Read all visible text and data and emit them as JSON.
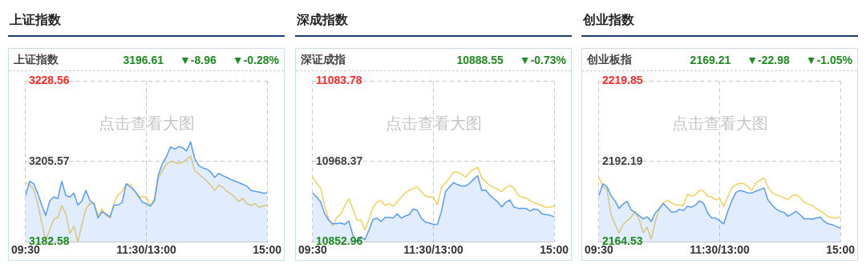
{
  "chart_data": [
    {
      "type": "line",
      "title": "上证指数",
      "subtitle": "上证指数",
      "annotations": [
        "点击查看大图",
        "3196.61",
        "▼-8.96",
        "▼-0.28%"
      ],
      "categories": [
        "09:30",
        null,
        null,
        null,
        null,
        null,
        null,
        null,
        null,
        null,
        null,
        null,
        null,
        null,
        null,
        null,
        null,
        null,
        null,
        null,
        null,
        null,
        null,
        null,
        null,
        null,
        null,
        null,
        null,
        null,
        "11:30/13:00",
        null,
        null,
        null,
        null,
        null,
        null,
        null,
        null,
        null,
        null,
        null,
        null,
        null,
        null,
        null,
        null,
        null,
        null,
        null,
        null,
        null,
        null,
        null,
        null,
        null,
        null,
        null,
        null,
        null,
        "15:00"
      ],
      "ylim": [
        3182.58,
        3228.56
      ],
      "yticks": [
        3182.58,
        3205.57,
        3228.56
      ],
      "grid": true,
      "legend": false,
      "series": [
        {
          "type": "area",
          "color": "#5a9cf8",
          "values": [
            3195.8,
            3199.9,
            3199.2,
            3196.5,
            3193.1,
            3190.1,
            3194.3,
            3195.4,
            3195.0,
            3199.9,
            3195.8,
            3195.4,
            3196.5,
            3193.1,
            3194.3,
            3197.3,
            3194.3,
            3193.5,
            3189.4,
            3191.2,
            3190.5,
            3189.7,
            3193.1,
            3193.1,
            3193.9,
            3199.2,
            3198.3,
            3197.3,
            3195.8,
            3193.9,
            3193.5,
            3192.8,
            3194.3,
            3201.8,
            3205.0,
            3207.0,
            3209.7,
            3209.1,
            3209.8,
            3209.5,
            3208.6,
            3211.2,
            3206.5,
            3204.4,
            3203.7,
            3203.4,
            3202.5,
            3201.0,
            3202.2,
            3201.5,
            3201.0,
            3200.4,
            3199.9,
            3199.5,
            3199.0,
            3198.5,
            3197.3,
            3197.0,
            3196.8,
            3196.5,
            3196.6
          ]
        },
        {
          "type": "line",
          "color": "#f2d15e",
          "values": [
            3199.5,
            3198.8,
            3197.6,
            3193.5,
            3188.2,
            3182.9,
            3186.0,
            3189.0,
            3189.5,
            3193.0,
            3190.5,
            3185.0,
            3187.0,
            3182.6,
            3187.5,
            3192.0,
            3193.5,
            3193.5,
            3190.1,
            3192.0,
            3190.1,
            3189.4,
            3193.9,
            3196.0,
            3197.0,
            3199.0,
            3199.0,
            3197.2,
            3195.4,
            3195.4,
            3195.4,
            3192.8,
            3195.0,
            3201.0,
            3203.0,
            3204.8,
            3205.6,
            3205.3,
            3205.0,
            3205.3,
            3206.2,
            3207.1,
            3203.0,
            3202.0,
            3201.0,
            3200.0,
            3198.7,
            3197.3,
            3198.8,
            3198.2,
            3197.0,
            3196.3,
            3195.3,
            3194.1,
            3195.0,
            3193.5,
            3193.0,
            3193.5,
            3192.4,
            3192.8,
            3193.1
          ]
        }
      ]
    },
    {
      "type": "line",
      "title": "深成指数",
      "subtitle": "深证成指",
      "annotations": [
        "点击查看大图",
        "10888.55",
        "▼-0.73%"
      ],
      "categories": [
        "09:30",
        null,
        null,
        null,
        null,
        null,
        null,
        null,
        null,
        null,
        null,
        null,
        null,
        null,
        null,
        null,
        null,
        null,
        null,
        null,
        null,
        null,
        null,
        null,
        null,
        null,
        null,
        null,
        null,
        null,
        "11:30/13:00",
        null,
        null,
        null,
        null,
        null,
        null,
        null,
        null,
        null,
        null,
        null,
        null,
        null,
        null,
        null,
        null,
        null,
        null,
        null,
        null,
        null,
        null,
        null,
        null,
        null,
        null,
        null,
        null,
        null,
        "15:00"
      ],
      "ylim": [
        10852.96,
        11083.78
      ],
      "yticks": [
        10852.96,
        10968.37,
        11083.78
      ],
      "grid": true,
      "legend": false,
      "series": [
        {
          "type": "area",
          "color": "#5a9cf8",
          "values": [
            10923,
            10917,
            10910,
            10893,
            10884,
            10879,
            10879,
            10880,
            10878,
            10883,
            10862,
            10853,
            10860,
            10856,
            10870,
            10885,
            10887,
            10882,
            10888,
            10888,
            10887,
            10893,
            10887,
            10890,
            10892,
            10900,
            10898,
            10887,
            10881,
            10880,
            10878,
            10878,
            10897,
            10925,
            10932,
            10938,
            10935,
            10933,
            10933,
            10937,
            10943,
            10948,
            10927,
            10927,
            10920,
            10915,
            10910,
            10903,
            10910,
            10913,
            10903,
            10901,
            10901,
            10901,
            10897,
            10900,
            10899,
            10893,
            10892,
            10891,
            10889
          ]
        },
        {
          "type": "line",
          "color": "#f2d15e",
          "values": [
            10946,
            10937,
            10930,
            10904,
            10885,
            10876,
            10888,
            10893,
            10905,
            10915,
            10900,
            10884,
            10884,
            10870,
            10885,
            10902,
            10910,
            10912,
            10905,
            10908,
            10904,
            10910,
            10917,
            10923,
            10927,
            10929,
            10932,
            10925,
            10919,
            10917,
            10917,
            10906,
            10931,
            10937,
            10945,
            10953,
            10953,
            10950,
            10946,
            10953,
            10957,
            10960,
            10945,
            10939,
            10934,
            10931,
            10928,
            10925,
            10931,
            10934,
            10930,
            10920,
            10917,
            10916,
            10912,
            10909,
            10907,
            10905,
            10902,
            10903,
            10904
          ]
        }
      ]
    },
    {
      "type": "line",
      "title": "创业指数",
      "subtitle": "创业板指",
      "annotations": [
        "点击查看大图",
        "2169.21",
        "▼-22.98",
        "▼-1.05%"
      ],
      "categories": [
        "09:30",
        null,
        null,
        null,
        null,
        null,
        null,
        null,
        null,
        null,
        null,
        null,
        null,
        null,
        null,
        null,
        null,
        null,
        null,
        null,
        null,
        null,
        null,
        null,
        null,
        null,
        null,
        null,
        null,
        null,
        "11:30/13:00",
        null,
        null,
        null,
        null,
        null,
        null,
        null,
        null,
        null,
        null,
        null,
        null,
        null,
        null,
        null,
        null,
        null,
        null,
        null,
        null,
        null,
        null,
        null,
        null,
        null,
        null,
        null,
        null,
        null,
        "15:00"
      ],
      "ylim": [
        2164.53,
        2219.85
      ],
      "yticks": [
        2164.53,
        2192.19,
        2219.85
      ],
      "grid": true,
      "legend": false,
      "series": [
        {
          "type": "area",
          "color": "#5a9cf8",
          "values": [
            2180.4,
            2184.5,
            2183.5,
            2180.4,
            2178.6,
            2176.0,
            2177.5,
            2178.5,
            2175.5,
            2174.6,
            2173.5,
            2172.4,
            2173.1,
            2171.5,
            2174.5,
            2175.9,
            2177.7,
            2176.3,
            2174.8,
            2174.8,
            2175.7,
            2175.3,
            2176.8,
            2176.4,
            2177.2,
            2178.6,
            2177.8,
            2174.5,
            2172.7,
            2172.7,
            2171.8,
            2170.7,
            2175.0,
            2178.6,
            2181.5,
            2182.2,
            2181.9,
            2181.3,
            2181.3,
            2182.0,
            2182.4,
            2183.1,
            2179.0,
            2177.2,
            2175.8,
            2175.0,
            2174.6,
            2173.3,
            2174.1,
            2175.0,
            2173.8,
            2172.4,
            2172.5,
            2172.3,
            2172.7,
            2173.0,
            2171.5,
            2170.7,
            2170.4,
            2169.8,
            2169.2
          ]
        },
        {
          "type": "line",
          "color": "#f2d15e",
          "values": [
            2186.8,
            2183.5,
            2182.5,
            2174.0,
            2170.6,
            2167.5,
            2170.5,
            2171.8,
            2173.0,
            2175.0,
            2172.2,
            2167.7,
            2169.5,
            2165.5,
            2171.3,
            2176.0,
            2178.0,
            2178.8,
            2178.0,
            2177.2,
            2177.2,
            2177.0,
            2180.9,
            2180.2,
            2180.8,
            2182.2,
            2182.0,
            2180.3,
            2180.0,
            2179.0,
            2179.5,
            2176.6,
            2180.0,
            2183.0,
            2184.1,
            2184.7,
            2184.5,
            2183.6,
            2182.2,
            2184.8,
            2185.7,
            2186.5,
            2183.3,
            2181.5,
            2180.8,
            2180.2,
            2179.6,
            2179.0,
            2180.4,
            2180.7,
            2179.7,
            2178.1,
            2177.5,
            2177.0,
            2175.9,
            2175.2,
            2174.2,
            2173.1,
            2172.9,
            2172.7,
            2173.1
          ]
        }
      ]
    }
  ]
}
